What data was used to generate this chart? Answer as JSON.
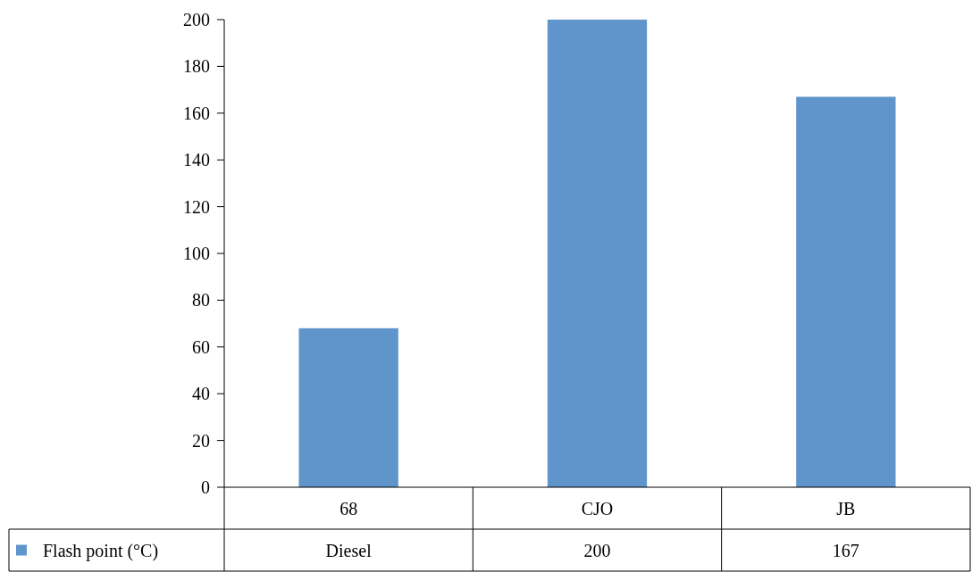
{
  "chart_data": {
    "type": "bar",
    "categories": [
      "68",
      "CJO",
      "JB"
    ],
    "series": [
      {
        "name": "Flash point (°C)",
        "color": "#5f95ca",
        "values": [
          68,
          200,
          167
        ],
        "value_labels": [
          "Diesel",
          "200",
          "167"
        ]
      }
    ],
    "ylim": [
      0,
      200
    ],
    "yticks": [
      0,
      20,
      40,
      60,
      80,
      100,
      120,
      140,
      160,
      180,
      200
    ],
    "grid": false,
    "legend": "bottom"
  }
}
